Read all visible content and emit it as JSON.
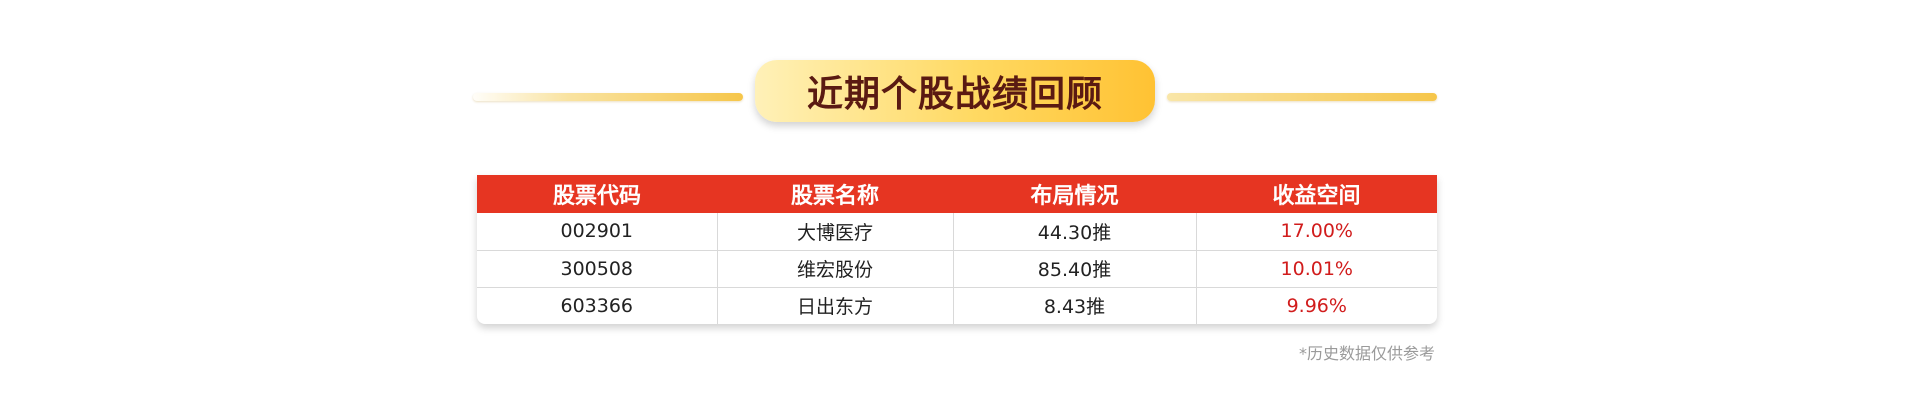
{
  "title": "近期个股战绩回顾",
  "table": {
    "headers": [
      "股票代码",
      "股票名称",
      "布局情况",
      "收益空间"
    ],
    "rows": [
      [
        "002901",
        "大博医疗",
        "44.30推",
        "17.00%"
      ],
      [
        "300508",
        "维宏股份",
        "85.40推",
        "10.01%"
      ],
      [
        "603366",
        "日出东方",
        "8.43推",
        "9.96%"
      ]
    ]
  },
  "footnote": "*历史数据仅供参考",
  "colors": {
    "header_bg": "#e63522",
    "gain_text": "#d11c1c",
    "title_text": "#5a1a12",
    "title_pill_start": "#fff1b8",
    "title_pill_end": "#ffc233"
  }
}
